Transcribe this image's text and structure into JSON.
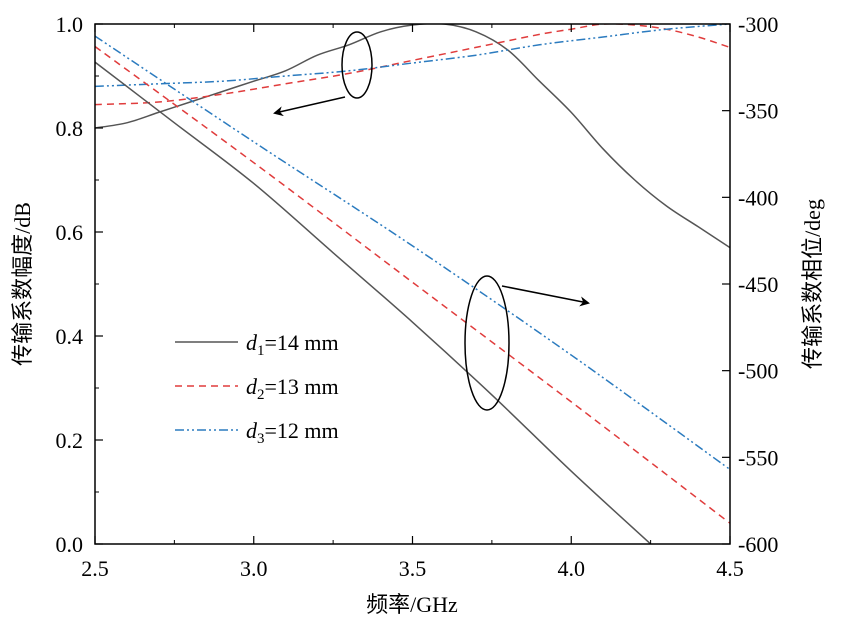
{
  "chart_data": {
    "type": "line",
    "xlabel": "频率/GHz",
    "ylabel_left": "传输系数幅度/dB",
    "ylabel_right": "传输系数相位/deg",
    "xlim": [
      2.5,
      4.5
    ],
    "ylim_left": [
      0,
      1.0
    ],
    "ylim_right": [
      -600,
      -300
    ],
    "x_ticks": [
      "2.5",
      "3.0",
      "3.5",
      "4.0",
      "4.5"
    ],
    "y_left_ticks": [
      "0.0",
      "0.2",
      "0.4",
      "0.6",
      "0.8",
      "1.0"
    ],
    "y_right_ticks": [
      "-600",
      "-550",
      "-500",
      "-450",
      "-400",
      "-350",
      "-300"
    ],
    "grid": false,
    "legend_position": "center-left",
    "legend": [
      {
        "var": "d",
        "sub": "1",
        "text": "=14 mm",
        "color": "#555555",
        "dash": "solid"
      },
      {
        "var": "d",
        "sub": "2",
        "text": "=13 mm",
        "color": "#e03c3c",
        "dash": "dashed"
      },
      {
        "var": "d",
        "sub": "3",
        "text": "=12 mm",
        "color": "#2b7bbf",
        "dash": "dashdotdot"
      }
    ],
    "series": [
      {
        "key": "mag_d1",
        "axis": "left",
        "color": "#555555",
        "dash": "solid",
        "x": [
          2.5,
          2.6,
          2.7,
          2.8,
          2.9,
          3.0,
          3.1,
          3.2,
          3.3,
          3.4,
          3.5,
          3.6,
          3.7,
          3.8,
          3.9,
          4.0,
          4.1,
          4.2,
          4.3,
          4.4,
          4.5
        ],
        "y": [
          0.8,
          0.81,
          0.83,
          0.85,
          0.87,
          0.89,
          0.91,
          0.94,
          0.96,
          0.985,
          0.998,
          1.0,
          0.985,
          0.95,
          0.89,
          0.83,
          0.76,
          0.7,
          0.65,
          0.61,
          0.57
        ]
      },
      {
        "key": "mag_d2",
        "axis": "left",
        "color": "#e03c3c",
        "dash": "dashed",
        "x": [
          2.5,
          2.7,
          2.9,
          3.1,
          3.3,
          3.5,
          3.7,
          3.9,
          4.0,
          4.1,
          4.2,
          4.3,
          4.4,
          4.5
        ],
        "y": [
          0.845,
          0.85,
          0.865,
          0.885,
          0.905,
          0.93,
          0.955,
          0.98,
          0.99,
          1.0,
          0.998,
          0.99,
          0.975,
          0.955
        ]
      },
      {
        "key": "mag_d3",
        "axis": "left",
        "color": "#2b7bbf",
        "dash": "dashdotdot",
        "x": [
          2.5,
          2.7,
          2.9,
          3.1,
          3.3,
          3.5,
          3.7,
          3.9,
          4.1,
          4.3,
          4.5
        ],
        "y": [
          0.88,
          0.885,
          0.89,
          0.9,
          0.91,
          0.925,
          0.94,
          0.96,
          0.975,
          0.99,
          1.0
        ]
      },
      {
        "key": "phase_d1",
        "axis": "right",
        "color": "#555555",
        "dash": "solid",
        "x": [
          2.5,
          2.75,
          3.0,
          3.25,
          3.5,
          3.75,
          4.0,
          4.25
        ],
        "y": [
          -322,
          -357,
          -392,
          -432,
          -472,
          -514,
          -558,
          -600
        ]
      },
      {
        "key": "phase_d2",
        "axis": "right",
        "color": "#e03c3c",
        "dash": "dashed",
        "x": [
          2.5,
          3.0,
          3.5,
          4.0,
          4.5
        ],
        "y": [
          -313,
          -380,
          -449,
          -518,
          -588
        ]
      },
      {
        "key": "phase_d3",
        "axis": "right",
        "color": "#2b7bbf",
        "dash": "dashdotdot",
        "x": [
          2.5,
          3.0,
          3.5,
          4.0,
          4.5
        ],
        "y": [
          -307,
          -368,
          -428,
          -491,
          -557
        ]
      }
    ]
  }
}
